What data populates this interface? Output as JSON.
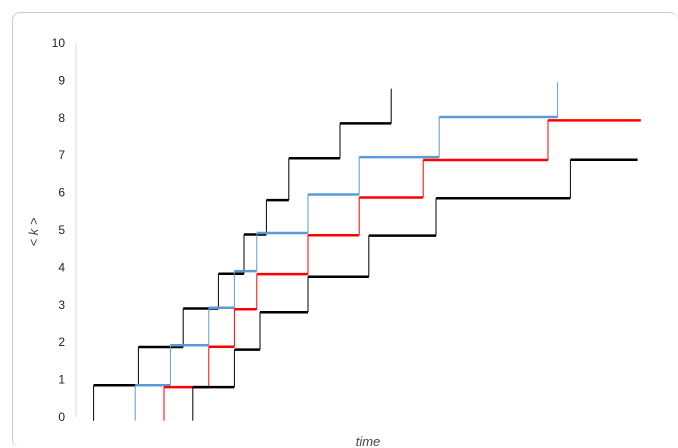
{
  "chart_data": {
    "type": "line",
    "title": "",
    "xlabel": "time",
    "ylabel": "< k >",
    "ylim": [
      0,
      10
    ],
    "yticks": [
      0,
      1,
      2,
      3,
      4,
      5,
      6,
      7,
      8,
      9,
      10
    ],
    "x_ticks_shown": false,
    "grid": false,
    "legend": "none",
    "series": [
      {
        "color": "#000000",
        "step_from": -0.1,
        "points": [
          [
            0.3,
            0.85
          ],
          [
            1.7,
            0.85
          ],
          [
            1.7,
            1.87
          ],
          [
            3.1,
            1.87
          ],
          [
            3.1,
            2.9
          ],
          [
            4.2,
            2.9
          ],
          [
            4.2,
            3.83
          ],
          [
            5.0,
            3.83
          ],
          [
            5.0,
            4.88
          ],
          [
            5.7,
            4.88
          ],
          [
            5.7,
            5.8
          ],
          [
            6.4,
            5.8
          ],
          [
            6.4,
            6.92
          ],
          [
            8.0,
            6.92
          ],
          [
            8.0,
            7.85
          ],
          [
            9.6,
            7.85
          ],
          [
            9.6,
            8.78
          ]
        ]
      },
      {
        "color": "#5b9bd5",
        "step_from": -0.1,
        "points": [
          [
            1.6,
            0.85
          ],
          [
            2.7,
            0.85
          ],
          [
            2.7,
            1.92
          ],
          [
            3.9,
            1.92
          ],
          [
            3.9,
            2.92
          ],
          [
            4.7,
            2.92
          ],
          [
            4.7,
            3.9
          ],
          [
            5.4,
            3.9
          ],
          [
            5.4,
            4.92
          ],
          [
            7.0,
            4.92
          ],
          [
            7.0,
            5.95
          ],
          [
            8.6,
            5.95
          ],
          [
            8.6,
            6.95
          ],
          [
            11.1,
            6.95
          ],
          [
            11.1,
            8.02
          ],
          [
            14.8,
            8.02
          ],
          [
            14.8,
            8.95
          ]
        ]
      },
      {
        "color": "#ff0000",
        "step_from": -0.1,
        "points": [
          [
            2.5,
            0.8
          ],
          [
            3.9,
            0.8
          ],
          [
            3.9,
            1.88
          ],
          [
            4.7,
            1.88
          ],
          [
            4.7,
            2.88
          ],
          [
            5.4,
            2.88
          ],
          [
            5.4,
            3.82
          ],
          [
            7.0,
            3.82
          ],
          [
            7.0,
            4.86
          ],
          [
            8.6,
            4.86
          ],
          [
            8.6,
            5.87
          ],
          [
            10.6,
            5.87
          ],
          [
            10.6,
            6.87
          ],
          [
            14.5,
            6.87
          ],
          [
            14.5,
            7.93
          ],
          [
            17.4,
            7.93
          ]
        ]
      },
      {
        "color": "#000000",
        "step_from": -0.1,
        "points": [
          [
            3.4,
            0.8
          ],
          [
            4.7,
            0.8
          ],
          [
            4.7,
            1.8
          ],
          [
            5.5,
            1.8
          ],
          [
            5.5,
            2.8
          ],
          [
            7.0,
            2.8
          ],
          [
            7.0,
            3.75
          ],
          [
            8.9,
            3.75
          ],
          [
            8.9,
            4.85
          ],
          [
            11.0,
            4.85
          ],
          [
            11.0,
            5.85
          ],
          [
            15.2,
            5.85
          ],
          [
            15.2,
            6.88
          ],
          [
            17.3,
            6.88
          ]
        ]
      }
    ],
    "xlim": [
      0,
      18
    ]
  }
}
